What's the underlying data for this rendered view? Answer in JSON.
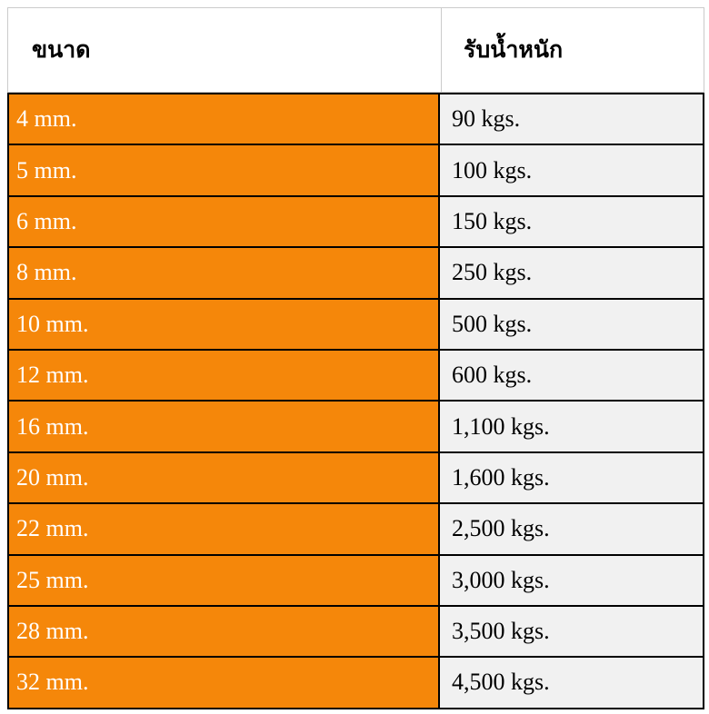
{
  "table": {
    "headers": {
      "size": "ขนาด",
      "capacity": "รับน้ำหนัก"
    },
    "rows": [
      {
        "size": "4 mm.",
        "capacity": "90 kgs."
      },
      {
        "size": "5 mm.",
        "capacity": "100 kgs."
      },
      {
        "size": "6 mm.",
        "capacity": "150 kgs."
      },
      {
        "size": "8 mm.",
        "capacity": "250 kgs."
      },
      {
        "size": "10 mm.",
        "capacity": "500 kgs."
      },
      {
        "size": "12 mm.",
        "capacity": "600 kgs."
      },
      {
        "size": "16 mm.",
        "capacity": "1,100 kgs."
      },
      {
        "size": "20 mm.",
        "capacity": "1,600 kgs."
      },
      {
        "size": "22 mm.",
        "capacity": "2,500 kgs."
      },
      {
        "size": "25 mm.",
        "capacity": "3,000 kgs."
      },
      {
        "size": "28 mm.",
        "capacity": "3,500 kgs."
      },
      {
        "size": "32 mm.",
        "capacity": "4,500 kgs."
      }
    ],
    "colors": {
      "size_cell_bg": "#f5870a",
      "capacity_cell_bg": "#f1f1f1",
      "size_text": "#ffffff",
      "capacity_text": "#000000",
      "row_border": "#000000",
      "header_border": "#cbcbcb",
      "header_bg": "#ffffff"
    }
  },
  "chart_data": {
    "type": "table",
    "title": "",
    "columns": [
      "ขนาด",
      "รับน้ำหนัก"
    ],
    "rows": [
      [
        "4 mm.",
        "90 kgs."
      ],
      [
        "5 mm.",
        "100 kgs."
      ],
      [
        "6 mm.",
        "150 kgs."
      ],
      [
        "8 mm.",
        "250 kgs."
      ],
      [
        "10 mm.",
        "500 kgs."
      ],
      [
        "12 mm.",
        "600 kgs."
      ],
      [
        "16 mm.",
        "1,100 kgs."
      ],
      [
        "20 mm.",
        "1,600 kgs."
      ],
      [
        "22 mm.",
        "2,500 kgs."
      ],
      [
        "25 mm.",
        "3,000 kgs."
      ],
      [
        "28 mm.",
        "3,500 kgs."
      ],
      [
        "32 mm.",
        "4,500 kgs."
      ]
    ],
    "size_mm": [
      4,
      5,
      6,
      8,
      10,
      12,
      16,
      20,
      22,
      25,
      28,
      32
    ],
    "capacity_kgs": [
      90,
      100,
      150,
      250,
      500,
      600,
      1100,
      1600,
      2500,
      3000,
      3500,
      4500
    ]
  }
}
